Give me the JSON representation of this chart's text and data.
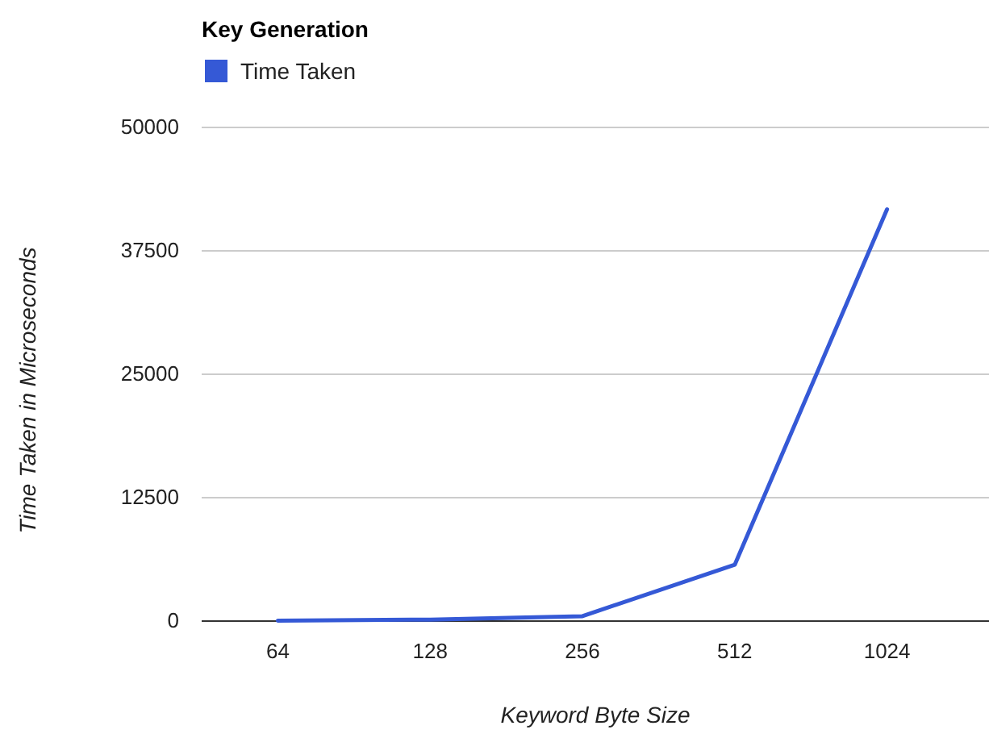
{
  "chart_data": {
    "type": "line",
    "title": "Key Generation",
    "xlabel": "Keyword Byte Size",
    "ylabel": "Time Taken in Microseconds",
    "categories": [
      "64",
      "128",
      "256",
      "512",
      "1024"
    ],
    "series": [
      {
        "name": "Time Taken",
        "color": "#3559d6",
        "values": [
          50,
          150,
          500,
          5700,
          41700
        ]
      }
    ],
    "ylim": [
      0,
      50000
    ],
    "yticks": [
      0,
      12500,
      25000,
      37500,
      50000
    ],
    "grid": "y",
    "legend": "top left",
    "marker": "none",
    "line_style": "solid"
  }
}
